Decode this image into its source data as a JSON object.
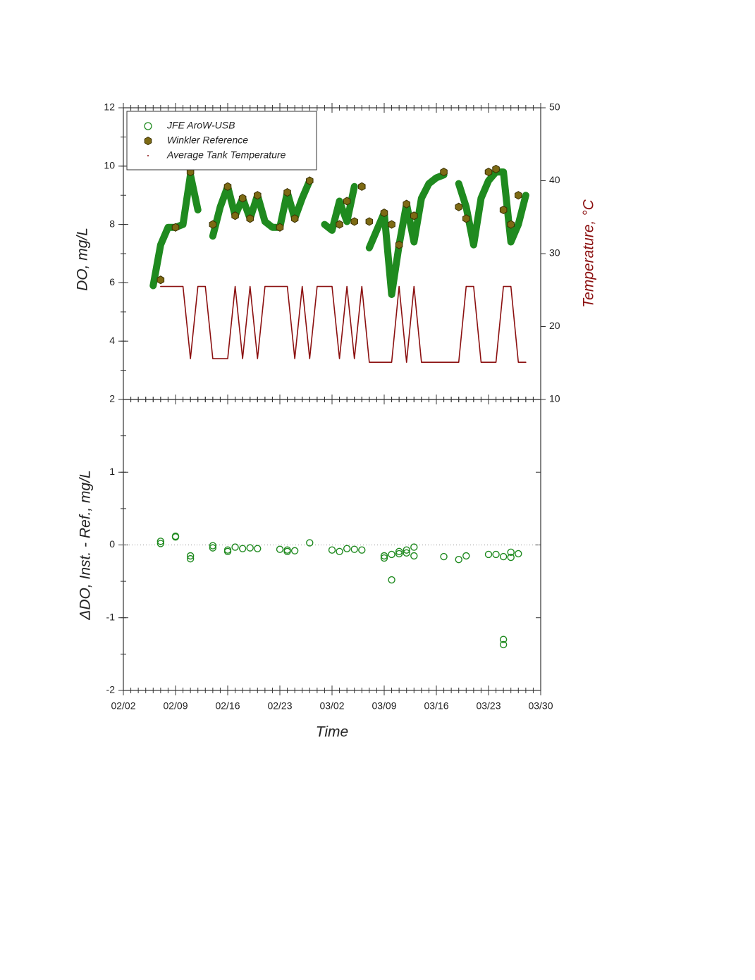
{
  "chart_data": [
    {
      "type": "scatter",
      "ylabel": "DO, mg/L",
      "y2label": "Temperature, °C",
      "xlim": [
        "02/02",
        "03/30"
      ],
      "ylim": [
        2,
        12
      ],
      "yticks": [
        2,
        4,
        6,
        8,
        10,
        12
      ],
      "y2lim": [
        10,
        50
      ],
      "y2ticks": [
        10,
        20,
        30,
        40,
        50
      ],
      "legend": "upper left",
      "series": [
        {
          "name": "JFE AroW-USB",
          "color": "#1f8a1f",
          "marker": "circle",
          "x": [
            "02/06",
            "02/07",
            "02/08",
            "02/09",
            "02/10",
            "02/11",
            "02/12",
            "02/13",
            "02/14",
            "02/15",
            "02/16",
            "02/17",
            "02/18",
            "02/19",
            "02/20",
            "02/21",
            "02/22",
            "02/23",
            "02/24",
            "02/25",
            "02/26",
            "02/27",
            "02/28",
            "03/01",
            "03/02",
            "03/03",
            "03/04",
            "03/05",
            "03/06",
            "03/07",
            "03/08",
            "03/09",
            "03/10",
            "03/11",
            "03/12",
            "03/13",
            "03/14",
            "03/15",
            "03/16",
            "03/17",
            "03/18",
            "03/19",
            "03/20",
            "03/21",
            "03/22",
            "03/23",
            "03/24",
            "03/25",
            "03/26",
            "03/27",
            "03/28"
          ],
          "values": [
            5.9,
            7.3,
            7.9,
            7.9,
            8.0,
            9.7,
            8.5,
            null,
            7.6,
            8.6,
            9.3,
            8.3,
            8.9,
            8.2,
            9.0,
            8.1,
            7.9,
            7.9,
            9.1,
            8.2,
            8.9,
            9.5,
            null,
            8.0,
            7.8,
            8.8,
            8.1,
            9.3,
            null,
            7.2,
            7.8,
            8.4,
            5.6,
            7.3,
            8.7,
            7.4,
            8.9,
            9.4,
            9.6,
            9.7,
            null,
            9.4,
            8.6,
            7.3,
            8.9,
            9.5,
            9.8,
            9.8,
            7.4,
            8.0,
            9.0
          ]
        },
        {
          "name": "Winkler Reference",
          "color": "#7d6a14",
          "marker": "hexagon",
          "x": [
            "02/07",
            "02/09",
            "02/11",
            "02/14",
            "02/16",
            "02/17",
            "02/18",
            "02/19",
            "02/20",
            "02/23",
            "02/24",
            "02/25",
            "02/27",
            "03/03",
            "03/04",
            "03/05",
            "03/06",
            "03/07",
            "03/09",
            "03/10",
            "03/11",
            "03/12",
            "03/13",
            "03/17",
            "03/19",
            "03/20",
            "03/23",
            "03/24",
            "03/25",
            "03/26",
            "03/27"
          ],
          "values": [
            6.1,
            7.9,
            9.8,
            8.0,
            9.3,
            8.3,
            8.9,
            8.2,
            9.0,
            7.9,
            9.1,
            8.2,
            9.5,
            8.0,
            8.8,
            8.1,
            9.3,
            8.1,
            8.4,
            8.0,
            7.3,
            8.7,
            8.3,
            9.8,
            8.6,
            8.2,
            9.8,
            9.9,
            8.5,
            8.0,
            9.0
          ]
        },
        {
          "name": "Average Tank Temperature",
          "color": "#8b1010",
          "marker": "dot",
          "axis": "y2",
          "x": [
            "02/07",
            "02/08",
            "02/09",
            "02/10",
            "02/11",
            "02/12",
            "02/13",
            "02/14",
            "02/15",
            "02/16",
            "02/17",
            "02/18",
            "02/19",
            "02/20",
            "02/21",
            "02/22",
            "02/23",
            "02/24",
            "02/25",
            "02/26",
            "02/27",
            "02/28",
            "03/01",
            "03/02",
            "03/03",
            "03/04",
            "03/05",
            "03/06",
            "03/07",
            "03/08",
            "03/09",
            "03/10",
            "03/11",
            "03/12",
            "03/13",
            "03/14",
            "03/15",
            "03/16",
            "03/17",
            "03/18",
            "03/19",
            "03/20",
            "03/21",
            "03/22",
            "03/23",
            "03/24",
            "03/25",
            "03/26",
            "03/27",
            "03/28"
          ],
          "values": [
            25.5,
            25.5,
            25.5,
            25.5,
            15.6,
            25.5,
            25.5,
            15.6,
            15.6,
            15.6,
            25.5,
            15.6,
            25.5,
            15.6,
            25.5,
            25.5,
            25.5,
            25.5,
            15.6,
            25.5,
            15.6,
            25.5,
            25.5,
            25.5,
            15.6,
            25.5,
            15.6,
            25.5,
            15.1,
            15.1,
            15.1,
            15.1,
            25.5,
            15.1,
            25.5,
            15.1,
            15.1,
            15.1,
            15.1,
            15.1,
            15.1,
            25.5,
            25.5,
            15.1,
            15.1,
            15.1,
            25.5,
            25.5,
            15.1,
            15.1
          ]
        }
      ]
    },
    {
      "type": "scatter",
      "ylabel": "ΔDO, Inst. - Ref., mg/L",
      "xlabel": "Time",
      "xlim": [
        "02/02",
        "03/30"
      ],
      "xticks": [
        "02/02",
        "02/09",
        "02/16",
        "02/23",
        "03/02",
        "03/09",
        "03/16",
        "03/23",
        "03/30"
      ],
      "ylim": [
        -2,
        2
      ],
      "yticks": [
        -2,
        -1,
        0,
        1
      ],
      "reference_line": 0,
      "series": [
        {
          "color": "#1f8a1f",
          "marker": "circle",
          "x": [
            "02/07",
            "02/07",
            "02/09",
            "02/09",
            "02/11",
            "02/11",
            "02/14",
            "02/14",
            "02/16",
            "02/16",
            "02/17",
            "02/18",
            "02/19",
            "02/20",
            "02/23",
            "02/24",
            "02/24",
            "02/25",
            "02/27",
            "03/02",
            "03/03",
            "03/04",
            "03/05",
            "03/06",
            "03/09",
            "03/09",
            "03/10",
            "03/10",
            "03/11",
            "03/11",
            "03/12",
            "03/12",
            "03/13",
            "03/13",
            "03/17",
            "03/19",
            "03/20",
            "03/23",
            "03/24",
            "03/25",
            "03/25",
            "03/25",
            "03/26",
            "03/26",
            "03/27"
          ],
          "values": [
            0.05,
            0.02,
            0.12,
            0.11,
            -0.15,
            -0.19,
            -0.01,
            -0.04,
            -0.07,
            -0.09,
            -0.03,
            -0.05,
            -0.04,
            -0.05,
            -0.06,
            -0.07,
            -0.09,
            -0.08,
            0.03,
            -0.07,
            -0.09,
            -0.05,
            -0.06,
            -0.07,
            -0.15,
            -0.18,
            -0.13,
            -0.48,
            -0.12,
            -0.09,
            -0.11,
            -0.07,
            -0.15,
            -0.03,
            -0.16,
            -0.2,
            -0.15,
            -0.13,
            -0.13,
            -0.16,
            -1.3,
            -1.37,
            -0.17,
            -0.1,
            -0.12
          ]
        }
      ]
    }
  ]
}
